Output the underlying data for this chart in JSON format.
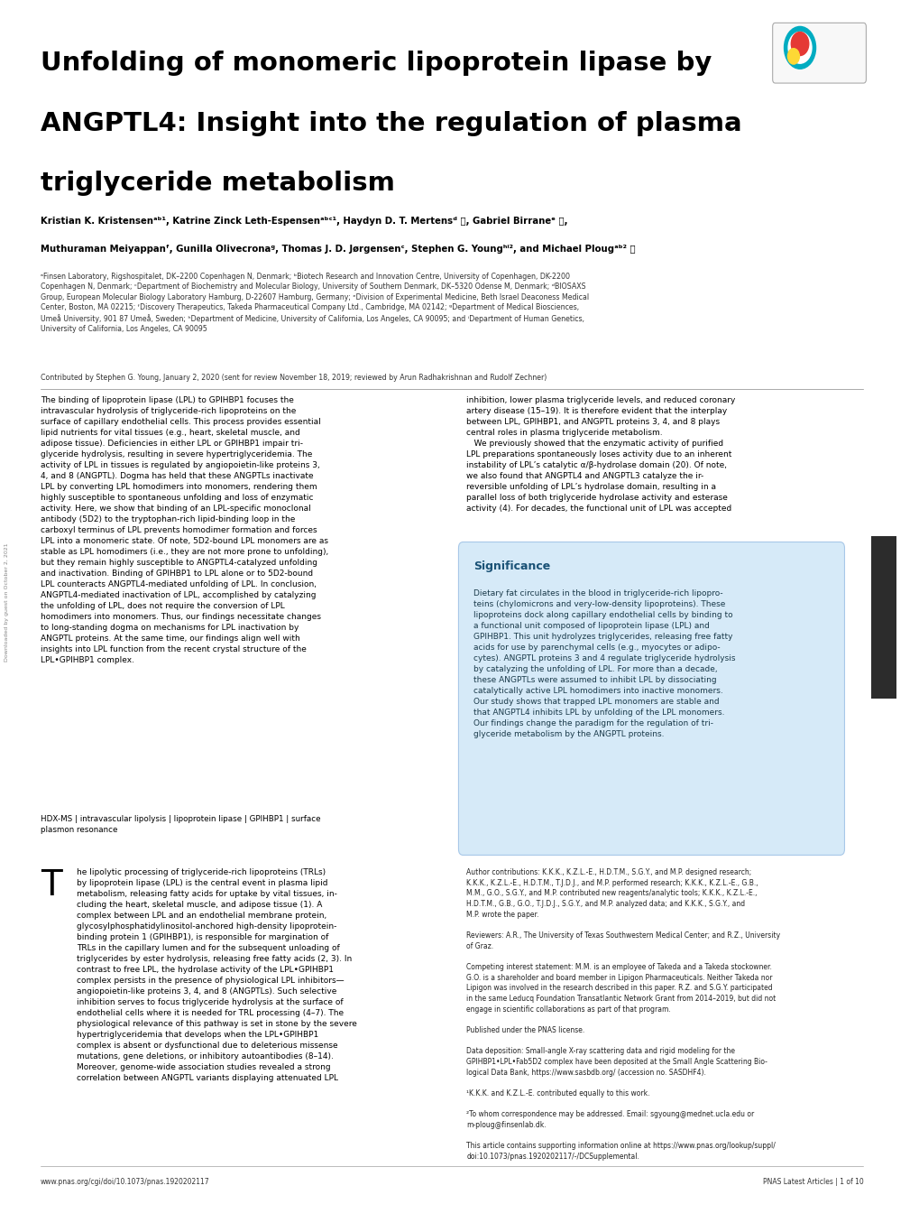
{
  "title_line1": "Unfolding of monomeric lipoprotein lipase by",
  "title_line2": "ANGPTL4: Insight into the regulation of plasma",
  "title_line3": "triglyceride metabolism",
  "authors": "Kristian K. Kristensenᵃᵇ¹, Katrine Zinck Leth-Espensenᵃᵇᶜ¹, Haydyn D. T. Mertensᵈ Ⓞ, Gabriel Birraneᵉ Ⓞ,",
  "authors2": "Muthuraman Meiyappanᶠ, Gunilla Olivecronaᵍ, Thomas J. D. Jørgensenᶜ, Stephen G. Youngʰⁱ², and Michael Plougᵃᵇ² Ⓞ",
  "affiliations": "ᵃFinsen Laboratory, Rigshospitalet, DK–2200 Copenhagen N, Denmark; ᵇBiotech Research and Innovation Centre, University of Copenhagen, DK-2200\nCopenhagen N, Denmark; ᶜDepartment of Biochemistry and Molecular Biology, University of Southern Denmark, DK–5320 Odense M, Denmark; ᵈBIOSAXS\nGroup, European Molecular Biology Laboratory Hamburg, D-22607 Hamburg, Germany; ᵉDivision of Experimental Medicine, Beth Israel Deaconess Medical\nCenter, Boston, MA 02215; ᶠDiscovery Therapeutics, Takeda Pharmaceutical Company Ltd., Cambridge, MA 02142; ᵍDepartment of Medical Biosciences,\nUmeå University, 901 87 Umeå, Sweden; ʰDepartment of Medicine, University of California, Los Angeles, CA 90095; and ⁱDepartment of Human Genetics,\nUniversity of California, Los Angeles, CA 90095",
  "contributed": "Contributed by Stephen G. Young, January 2, 2020 (sent for review November 18, 2019; reviewed by Arun Radhakrishnan and Rudolf Zechner)",
  "abstract_left": "The binding of lipoprotein lipase (LPL) to GPIHBP1 focuses the\nintravascular hydrolysis of triglyceride-rich lipoproteins on the\nsurface of capillary endothelial cells. This process provides essential\nlipid nutrients for vital tissues (e.g., heart, skeletal muscle, and\nadipose tissue). Deficiencies in either LPL or GPIHBP1 impair tri-\nglyceride hydrolysis, resulting in severe hypertriglyceridemia. The\nactivity of LPL in tissues is regulated by angiopoietin-like proteins 3,\n4, and 8 (ANGPTL). Dogma has held that these ANGPTLs inactivate\nLPL by converting LPL homodimers into monomers, rendering them\nhighly susceptible to spontaneous unfolding and loss of enzymatic\nactivity. Here, we show that binding of an LPL-specific monoclonal\nantibody (5D2) to the tryptophan-rich lipid-binding loop in the\ncarboxyl terminus of LPL prevents homodimer formation and forces\nLPL into a monomeric state. Of note, 5D2-bound LPL monomers are as\nstable as LPL homodimers (i.e., they are not more prone to unfolding),\nbut they remain highly susceptible to ANGPTL4-catalyzed unfolding\nand inactivation. Binding of GPIHBP1 to LPL alone or to 5D2-bound\nLPL counteracts ANGPTL4-mediated unfolding of LPL. In conclusion,\nANGPTL4-mediated inactivation of LPL, accomplished by catalyzing\nthe unfolding of LPL, does not require the conversion of LPL\nhomodimers into monomers. Thus, our findings necessitate changes\nto long-standing dogma on mechanisms for LPL inactivation by\nANGPTL proteins. At the same time, our findings align well with\ninsights into LPL function from the recent crystal structure of the\nLPL•GPIHBP1 complex.",
  "keywords": "HDX-MS | intravascular lipolysis | lipoprotein lipase | GPIHBP1 | surface\nplasmon resonance",
  "abstract_right_top": "inhibition, lower plasma triglyceride levels, and reduced coronary\nartery disease (15–19). It is therefore evident that the interplay\nbetween LPL, GPIHBP1, and ANGPTL proteins 3, 4, and 8 plays\ncentral roles in plasma triglyceride metabolism.\n   We previously showed that the enzymatic activity of purified\nLPL preparations spontaneously loses activity due to an inherent\ninstability of LPL’s catalytic α/β-hydrolase domain (20). Of note,\nwe also found that ANGPTL4 and ANGPTL3 catalyze the ir-\nreversible unfolding of LPL’s hydrolase domain, resulting in a\nparallel loss of both triglyceride hydrolase activity and esterase\nactivity (4). For decades, the functional unit of LPL was accepted",
  "significance_title": "Significance",
  "significance_body": "Dietary fat circulates in the blood in triglyceride-rich lipopro-\nteins (chylomicrons and very-low-density lipoproteins). These\nlipoproteins dock along capillary endothelial cells by binding to\na functional unit composed of lipoprotein lipase (LPL) and\nGPIHBP1. This unit hydrolyzes triglycerides, releasing free fatty\nacids for use by parenchymal cells (e.g., myocytes or adipo-\ncytes). ANGPTL proteins 3 and 4 regulate triglyceride hydrolysis\nby catalyzing the unfolding of LPL. For more than a decade,\nthese ANGPTLs were assumed to inhibit LPL by dissociating\ncatalytically active LPL homodimers into inactive monomers.\nOur study shows that trapped LPL monomers are stable and\nthat ANGPTL4 inhibits LPL by unfolding of the LPL monomers.\nOur findings change the paradigm for the regulation of tri-\nglyceride metabolism by the ANGPTL proteins.",
  "intro_body": "he lipolytic processing of triglyceride-rich lipoproteins (TRLs)\nby lipoprotein lipase (LPL) is the central event in plasma lipid\nmetabolism, releasing fatty acids for uptake by vital tissues, in-\ncluding the heart, skeletal muscle, and adipose tissue (1). A\ncomplex between LPL and an endothelial membrane protein,\nglycosylphosphatidylinositol-anchored high-density lipoprotein-\nbinding protein 1 (GPIHBP1), is responsible for margination of\nTRLs in the capillary lumen and for the subsequent unloading of\ntriglycerides by ester hydrolysis, releasing free fatty acids (2, 3). In\ncontrast to free LPL, the hydrolase activity of the LPL•GPIHBP1\ncomplex persists in the presence of physiological LPL inhibitors—\nangiopoietin-like proteins 3, 4, and 8 (ANGPTLs). Such selective\ninhibition serves to focus triglyceride hydrolysis at the surface of\nendothelial cells where it is needed for TRL processing (4–7). The\nphysiological relevance of this pathway is set in stone by the severe\nhypertriglyceridemia that develops when the LPL•GPIHBP1\ncomplex is absent or dysfunctional due to deleterious missense\nmutations, gene deletions, or inhibitory autoantibodies (8–14).\nMoreover, genome-wide association studies revealed a strong\ncorrelation between ANGPTL variants displaying attenuated LPL",
  "right_bottom": "Author contributions: K.K.K., K.Z.L.-E., H.D.T.M., S.G.Y., and M.P. designed research;\nK.K.K., K.Z.L.-E., H.D.T.M., T.J.D.J., and M.P. performed research; K.K.K., K.Z.L.-E., G.B.,\nM.M., G.O., S.G.Y., and M.P. contributed new reagents/analytic tools; K.K.K., K.Z.L.-E.,\nH.D.T.M., G.B., G.O., T.J.D.J., S.G.Y., and M.P. analyzed data; and K.K.K., S.G.Y., and\nM.P. wrote the paper.\n\nReviewers: A.R., The University of Texas Southwestern Medical Center; and R.Z., University\nof Graz.\n\nCompeting interest statement: M.M. is an employee of Takeda and a Takeda stockowner.\nG.O. is a shareholder and board member in Lipigon Pharmaceuticals. Neither Takeda nor\nLipigon was involved in the research described in this paper. R.Z. and S.G.Y. participated\nin the same Leducq Foundation Transatlantic Network Grant from 2014–2019, but did not\nengage in scientific collaborations as part of that program.\n\nPublished under the PNAS license.\n\nData deposition: Small-angle X-ray scattering data and rigid modeling for the\nGPIHBP1•LPL•Fab5D2 complex have been deposited at the Small Angle Scattering Bio-\nlogical Data Bank, https://www.sasbdb.org/ (accession no. SASDHF4).\n\n¹K.K.K. and K.Z.L.-E. contributed equally to this work.\n\n²To whom correspondence may be addressed. Email: sgyoung@mednet.ucla.edu or\nm-ploug@finsenlab.dk.\n\nThis article contains supporting information online at https://www.pnas.org/lookup/suppl/\ndoi:10.1073/pnas.1920202117/-/DCSupplemental.",
  "footer_left": "www.pnas.org/cgi/doi/10.1073/pnas.1920202117",
  "footer_right": "PNAS Latest Articles | 1 of 10",
  "background_color": "#ffffff",
  "title_color": "#000000",
  "author_color": "#000000",
  "affil_color": "#333333",
  "abstract_color": "#000000",
  "significance_bg": "#d6eaf8",
  "significance_title_color": "#1a5276",
  "significance_text_color": "#1a3a4a",
  "medical_sciences_color": "#ffffff",
  "medical_sciences_bg": "#2c2c2c"
}
